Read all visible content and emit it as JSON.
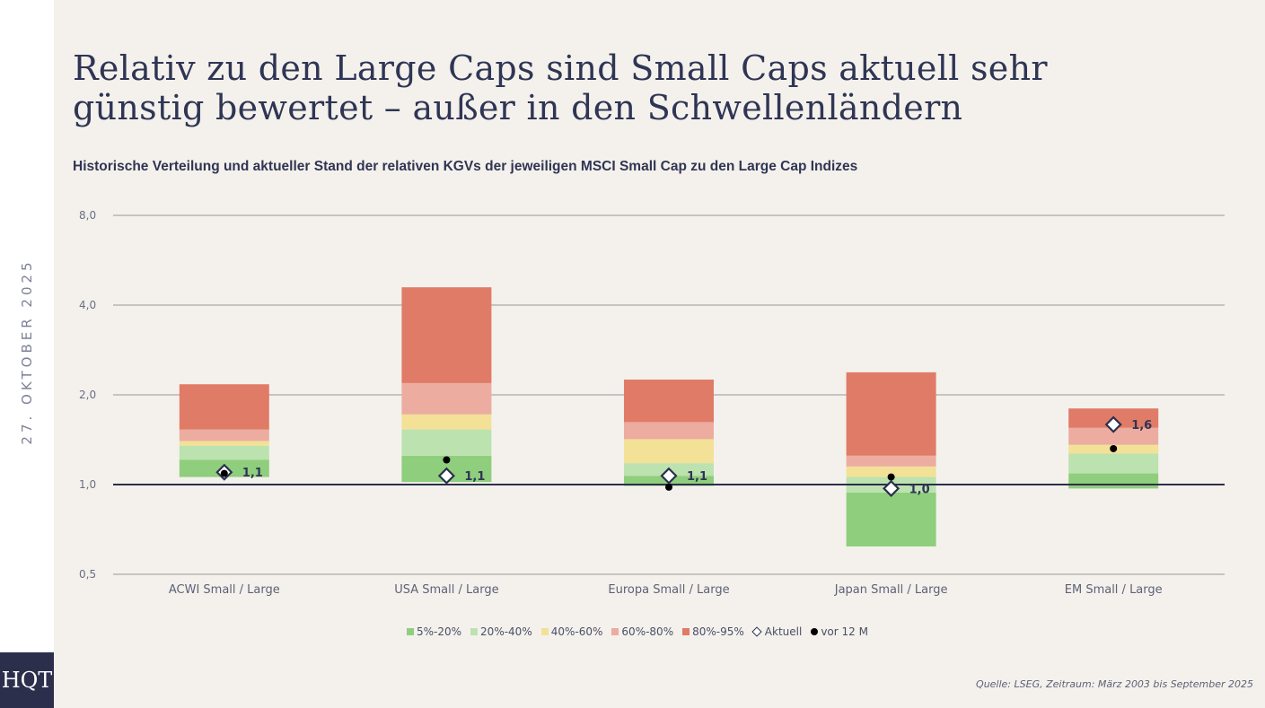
{
  "header": {
    "title_line1": "Relativ zu den Large Caps sind Small Caps aktuell sehr",
    "title_line2": "günstig bewertet – außer in den Schwellenländern",
    "subtitle": "Historische Verteilung und aktueller Stand der relativen KGVs der jeweiligen MSCI Small Cap zu den Large Cap Indizes"
  },
  "sidebar": {
    "date": "27. OKTOBER 2025",
    "logo": "HQT"
  },
  "footer": {
    "source": "Quelle: LSEG, Zeitraum: März 2003 bis September 2025"
  },
  "colors": {
    "p5_20": "#8fce7c",
    "p20_40": "#bce2b0",
    "p40_60": "#f2e196",
    "p60_80": "#ecaca0",
    "p80_95": "#e07b67",
    "baseline": "#2b2f4c",
    "grid": "#aaaaaa",
    "text_dark": "#2f3554"
  },
  "chart_data": {
    "type": "bar",
    "subtype": "stacked-floating-percentile-bands",
    "title": "Historische Verteilung und aktueller Stand der relativen KGVs der jeweiligen MSCI Small Cap zu den Large Cap Indizes",
    "xlabel": "",
    "ylabel": "",
    "yscale": "log2",
    "ylim": [
      0.5,
      8.0
    ],
    "yticks": [
      0.5,
      1.0,
      2.0,
      4.0,
      8.0
    ],
    "ytick_labels": [
      "0,5",
      "1,0",
      "2,0",
      "4,0",
      "8,0"
    ],
    "reference_line": 1.0,
    "grid": true,
    "legend_position": "bottom-center",
    "legend": [
      {
        "key": "p5_20",
        "label": "5%-20%",
        "kind": "square"
      },
      {
        "key": "p20_40",
        "label": "20%-40%",
        "kind": "square"
      },
      {
        "key": "p40_60",
        "label": "40%-60%",
        "kind": "square"
      },
      {
        "key": "p60_80",
        "label": "60%-80%",
        "kind": "square"
      },
      {
        "key": "p80_95",
        "label": "80%-95%",
        "kind": "square"
      },
      {
        "key": "aktuell",
        "label": "Aktuell",
        "kind": "diamond"
      },
      {
        "key": "vor12m",
        "label": "vor 12 M",
        "kind": "dot"
      }
    ],
    "categories": [
      "ACWI Small / Large",
      "USA Small / Large",
      "Europa Small / Large",
      "Japan Small / Large",
      "EM Small / Large"
    ],
    "percentile_bounds_note": "values are [p5, p20, p40, p60, p80, p95]",
    "series": [
      {
        "name": "ACWI Small / Large",
        "percentiles": [
          1.06,
          1.21,
          1.35,
          1.4,
          1.53,
          2.17
        ],
        "aktuell": 1.1,
        "aktuell_label": "1,1",
        "vor12m": 1.09
      },
      {
        "name": "USA Small / Large",
        "percentiles": [
          1.02,
          1.25,
          1.53,
          1.72,
          2.19,
          4.59
        ],
        "aktuell": 1.07,
        "aktuell_label": "1,1",
        "vor12m": 1.21
      },
      {
        "name": "Europa Small / Large",
        "percentiles": [
          0.99,
          1.07,
          1.18,
          1.42,
          1.62,
          2.25
        ],
        "aktuell": 1.07,
        "aktuell_label": "1,1",
        "vor12m": 0.98
      },
      {
        "name": "Japan Small / Large",
        "percentiles": [
          0.62,
          0.94,
          1.06,
          1.15,
          1.25,
          2.38
        ],
        "aktuell": 0.97,
        "aktuell_label": "1,0",
        "vor12m": 1.06
      },
      {
        "name": "EM Small / Large",
        "percentiles": [
          0.97,
          1.09,
          1.27,
          1.36,
          1.55,
          1.8
        ],
        "aktuell": 1.59,
        "aktuell_label": "1,6",
        "vor12m": 1.32
      }
    ]
  }
}
